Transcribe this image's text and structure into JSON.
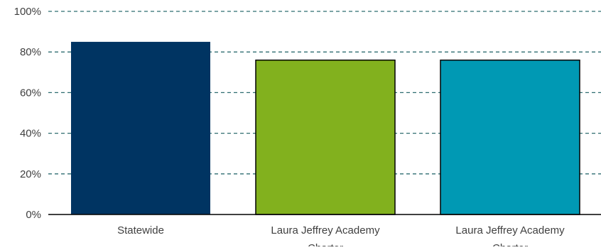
{
  "chart_data": {
    "type": "bar",
    "title": "",
    "xlabel": "",
    "ylabel": "",
    "categories": [
      "Statewide",
      "Laura Jeffrey Academy Charter",
      "Laura Jeffrey Academy Charter"
    ],
    "values": [
      85,
      76,
      76
    ],
    "value_unit": "%",
    "ylim": [
      0,
      100
    ],
    "yticks": [
      0,
      20,
      40,
      60,
      80,
      100
    ],
    "ytick_labels": [
      "0%",
      "20%",
      "40%",
      "60%",
      "80%",
      "100%"
    ],
    "grid": true,
    "grid_style": "dashed",
    "legend": "none",
    "colors": {
      "bars": [
        "#003462",
        "#82b11e",
        "#0099b4"
      ],
      "bar_outline": [
        "none",
        "#000000",
        "#000000"
      ],
      "grid": "#2f6d70",
      "axis": "#000000",
      "text": "#404040"
    }
  }
}
